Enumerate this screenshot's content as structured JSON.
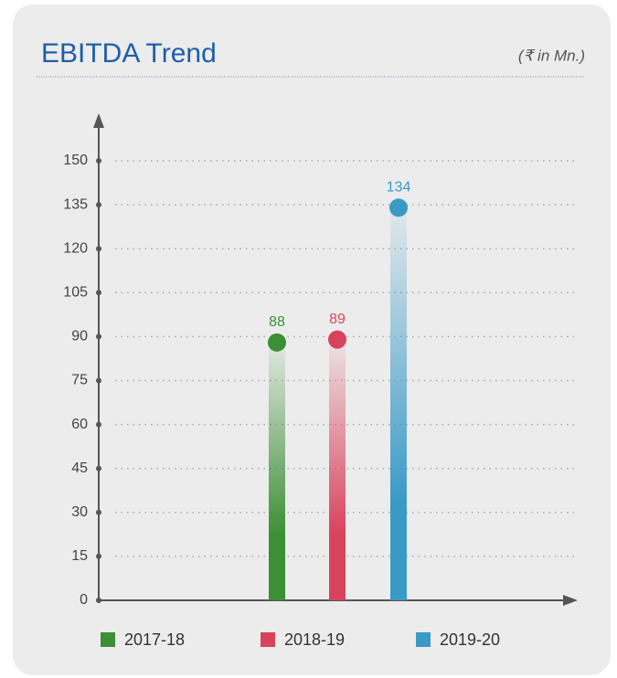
{
  "chart_data": {
    "type": "bar",
    "title": "EBITDA Trend",
    "subtitle": "(₹ in Mn.)",
    "categories": [
      "2017-18",
      "2018-19",
      "2019-20"
    ],
    "values": [
      88,
      89,
      134
    ],
    "colors": [
      "#3d8f35",
      "#d8435c",
      "#3a9ac6"
    ],
    "ylim": [
      0,
      150
    ],
    "yticks": [
      0,
      15,
      30,
      45,
      60,
      75,
      90,
      105,
      120,
      135,
      150
    ],
    "grid": true
  }
}
